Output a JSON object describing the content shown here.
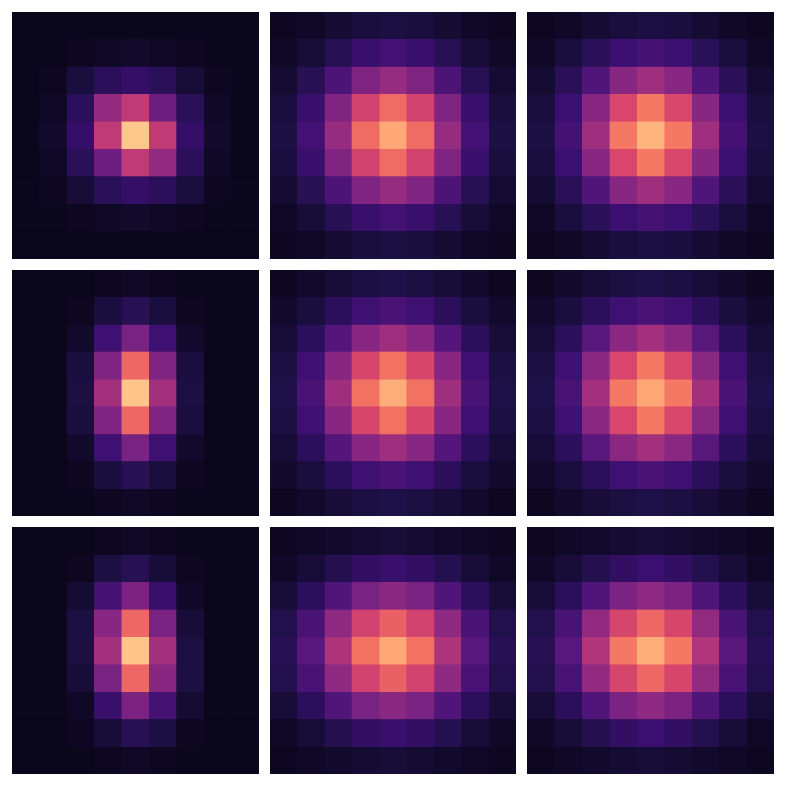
{
  "chart_data": [
    {
      "type": "heatmap",
      "tick_labels": false,
      "zlim": [
        0,
        100
      ],
      "cells": [
        [
          4,
          4,
          4,
          4,
          4,
          4,
          4,
          4,
          4
        ],
        [
          4,
          4,
          5,
          6,
          7,
          6,
          5,
          4,
          4
        ],
        [
          4,
          5,
          10,
          17,
          20,
          16,
          9,
          5,
          4
        ],
        [
          4,
          6,
          17,
          46,
          58,
          36,
          16,
          6,
          4
        ],
        [
          4,
          7,
          20,
          58,
          90,
          58,
          20,
          7,
          4
        ],
        [
          4,
          6,
          16,
          36,
          58,
          46,
          17,
          6,
          4
        ],
        [
          4,
          5,
          9,
          16,
          20,
          17,
          10,
          5,
          4
        ],
        [
          4,
          4,
          5,
          6,
          7,
          6,
          5,
          4,
          4
        ],
        [
          4,
          4,
          4,
          4,
          4,
          4,
          4,
          4,
          4
        ]
      ]
    },
    {
      "type": "heatmap",
      "tick_labels": false,
      "zlim": [
        0,
        100
      ],
      "cells": [
        [
          5,
          6,
          8,
          10,
          11,
          10,
          8,
          6,
          5
        ],
        [
          6,
          9,
          15,
          21,
          24,
          21,
          15,
          9,
          6
        ],
        [
          8,
          15,
          27,
          41,
          47,
          41,
          27,
          15,
          8
        ],
        [
          10,
          21,
          41,
          63,
          73,
          63,
          41,
          21,
          10
        ],
        [
          11,
          24,
          47,
          73,
          84,
          73,
          47,
          24,
          11
        ],
        [
          10,
          21,
          41,
          63,
          73,
          63,
          41,
          21,
          10
        ],
        [
          8,
          15,
          27,
          41,
          47,
          41,
          27,
          15,
          8
        ],
        [
          6,
          9,
          15,
          21,
          24,
          21,
          15,
          9,
          6
        ],
        [
          5,
          6,
          8,
          10,
          11,
          10,
          8,
          6,
          5
        ]
      ]
    },
    {
      "type": "heatmap",
      "tick_labels": false,
      "zlim": [
        0,
        100
      ],
      "cells": [
        [
          5,
          6,
          8,
          10,
          11,
          10,
          8,
          6,
          5
        ],
        [
          6,
          10,
          16,
          22,
          25,
          22,
          16,
          10,
          6
        ],
        [
          8,
          16,
          28,
          43,
          49,
          43,
          28,
          16,
          8
        ],
        [
          10,
          22,
          43,
          65,
          75,
          65,
          43,
          22,
          10
        ],
        [
          11,
          25,
          49,
          75,
          86,
          75,
          49,
          25,
          11
        ],
        [
          10,
          22,
          43,
          65,
          75,
          65,
          43,
          22,
          10
        ],
        [
          8,
          16,
          28,
          43,
          49,
          43,
          28,
          16,
          8
        ],
        [
          6,
          10,
          16,
          22,
          25,
          22,
          16,
          10,
          6
        ],
        [
          5,
          6,
          8,
          10,
          11,
          10,
          8,
          6,
          5
        ]
      ]
    },
    {
      "type": "heatmap",
      "tick_labels": false,
      "zlim": [
        0,
        100
      ],
      "cells": [
        [
          4,
          4,
          4,
          5,
          6,
          5,
          4,
          4,
          4
        ],
        [
          4,
          4,
          5,
          10,
          15,
          10,
          5,
          4,
          4
        ],
        [
          4,
          4,
          7,
          23,
          39,
          23,
          7,
          4,
          4
        ],
        [
          4,
          4,
          10,
          41,
          72,
          41,
          10,
          4,
          4
        ],
        [
          4,
          4,
          11,
          50,
          89,
          50,
          11,
          4,
          4
        ],
        [
          4,
          4,
          10,
          41,
          72,
          41,
          10,
          4,
          4
        ],
        [
          4,
          4,
          7,
          23,
          39,
          23,
          7,
          4,
          4
        ],
        [
          4,
          4,
          5,
          10,
          15,
          10,
          5,
          4,
          4
        ],
        [
          4,
          4,
          4,
          5,
          6,
          5,
          4,
          4,
          4
        ]
      ]
    },
    {
      "type": "heatmap",
      "tick_labels": false,
      "zlim": [
        0,
        100
      ],
      "cells": [
        [
          5,
          7,
          9,
          11,
          12,
          11,
          9,
          7,
          5
        ],
        [
          7,
          10,
          17,
          23,
          26,
          23,
          17,
          10,
          7
        ],
        [
          9,
          17,
          29,
          43,
          49,
          43,
          29,
          17,
          9
        ],
        [
          11,
          23,
          43,
          64,
          74,
          64,
          43,
          23,
          11
        ],
        [
          12,
          26,
          49,
          74,
          85,
          74,
          49,
          26,
          12
        ],
        [
          11,
          23,
          43,
          64,
          74,
          64,
          43,
          23,
          11
        ],
        [
          9,
          17,
          29,
          43,
          49,
          43,
          29,
          17,
          9
        ],
        [
          7,
          10,
          17,
          23,
          26,
          23,
          17,
          10,
          7
        ],
        [
          5,
          7,
          9,
          11,
          12,
          11,
          9,
          7,
          5
        ]
      ]
    },
    {
      "type": "heatmap",
      "tick_labels": false,
      "zlim": [
        0,
        100
      ],
      "cells": [
        [
          5,
          7,
          9,
          11,
          12,
          11,
          9,
          7,
          5
        ],
        [
          7,
          10,
          17,
          23,
          26,
          23,
          17,
          10,
          7
        ],
        [
          9,
          17,
          30,
          44,
          50,
          44,
          30,
          17,
          9
        ],
        [
          11,
          23,
          44,
          65,
          75,
          65,
          44,
          23,
          11
        ],
        [
          12,
          26,
          50,
          75,
          84,
          75,
          50,
          26,
          12
        ],
        [
          11,
          23,
          44,
          65,
          75,
          65,
          44,
          23,
          11
        ],
        [
          9,
          17,
          30,
          44,
          50,
          44,
          30,
          17,
          9
        ],
        [
          7,
          10,
          17,
          23,
          26,
          23,
          17,
          10,
          7
        ],
        [
          5,
          7,
          9,
          11,
          12,
          11,
          9,
          7,
          5
        ]
      ]
    },
    {
      "type": "heatmap",
      "tick_labels": false,
      "zlim": [
        0,
        100
      ],
      "cells": [
        [
          4,
          4,
          4,
          5,
          6,
          5,
          4,
          4,
          4
        ],
        [
          4,
          4,
          5,
          11,
          15,
          9,
          5,
          4,
          4
        ],
        [
          4,
          4,
          8,
          25,
          40,
          21,
          6,
          4,
          4
        ],
        [
          4,
          4,
          11,
          43,
          72,
          39,
          9,
          4,
          4
        ],
        [
          4,
          4,
          11,
          50,
          89,
          50,
          11,
          4,
          4
        ],
        [
          4,
          4,
          9,
          39,
          72,
          43,
          11,
          4,
          4
        ],
        [
          4,
          4,
          6,
          21,
          40,
          25,
          8,
          4,
          4
        ],
        [
          4,
          4,
          5,
          9,
          15,
          11,
          5,
          4,
          4
        ],
        [
          4,
          4,
          4,
          5,
          6,
          5,
          4,
          4,
          4
        ]
      ]
    },
    {
      "type": "heatmap",
      "tick_labels": false,
      "zlim": [
        0,
        100
      ],
      "cells": [
        [
          5,
          6,
          7,
          8,
          9,
          8,
          7,
          6,
          5
        ],
        [
          6,
          9,
          14,
          19,
          21,
          19,
          14,
          9,
          6
        ],
        [
          9,
          17,
          28,
          39,
          44,
          39,
          28,
          17,
          9
        ],
        [
          13,
          26,
          45,
          63,
          71,
          63,
          45,
          26,
          13
        ],
        [
          15,
          30,
          53,
          74,
          84,
          74,
          53,
          30,
          15
        ],
        [
          13,
          26,
          45,
          63,
          71,
          63,
          45,
          26,
          13
        ],
        [
          9,
          17,
          28,
          39,
          44,
          39,
          28,
          17,
          9
        ],
        [
          6,
          9,
          14,
          19,
          21,
          19,
          14,
          9,
          6
        ],
        [
          5,
          6,
          7,
          8,
          9,
          8,
          7,
          6,
          5
        ]
      ]
    },
    {
      "type": "heatmap",
      "tick_labels": false,
      "zlim": [
        0,
        100
      ],
      "cells": [
        [
          5,
          6,
          7,
          8,
          9,
          8,
          7,
          6,
          5
        ],
        [
          6,
          9,
          14,
          19,
          22,
          19,
          14,
          9,
          6
        ],
        [
          9,
          17,
          28,
          40,
          45,
          40,
          28,
          17,
          9
        ],
        [
          13,
          26,
          46,
          64,
          72,
          64,
          46,
          26,
          13
        ],
        [
          15,
          30,
          54,
          75,
          85,
          75,
          54,
          30,
          15
        ],
        [
          13,
          26,
          46,
          64,
          72,
          64,
          46,
          26,
          13
        ],
        [
          9,
          17,
          28,
          40,
          45,
          40,
          28,
          17,
          9
        ],
        [
          6,
          9,
          14,
          19,
          22,
          19,
          14,
          9,
          6
        ],
        [
          5,
          6,
          7,
          8,
          9,
          8,
          7,
          6,
          5
        ]
      ]
    }
  ]
}
